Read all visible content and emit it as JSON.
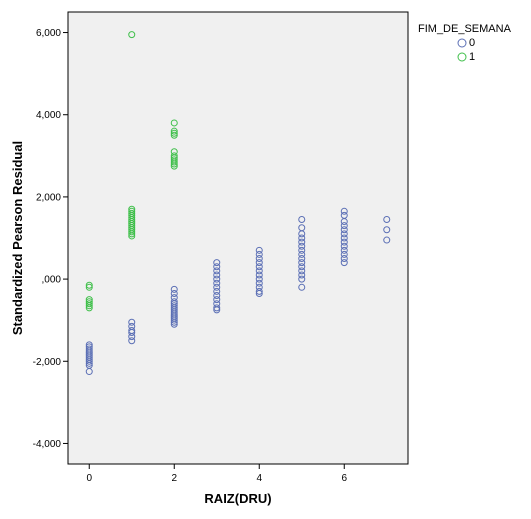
{
  "chart_data": {
    "type": "scatter",
    "xlabel": "RAIZ(DRU)",
    "ylabel": "Standardized Pearson Residual",
    "xlim": [
      -0.5,
      7.5
    ],
    "ylim": [
      -4.5,
      6.5
    ],
    "x_ticks": [
      0,
      2,
      4,
      6
    ],
    "x_tick_labels": [
      "0",
      "2",
      "4",
      "6"
    ],
    "y_ticks": [
      -4,
      -2,
      0,
      2,
      4,
      6
    ],
    "y_tick_labels": [
      "-4,000",
      "-2,000",
      ",000",
      "2,000",
      "4,000",
      "6,000"
    ],
    "grid": false,
    "legend_title": "FIM_DE_SEMANA",
    "legend_position": "top-right, outside plot",
    "background_color": "#f0f0f0",
    "series": [
      {
        "name": "0",
        "color": "#5b6fb5",
        "marker": "open-circle",
        "points": [
          [
            0,
            -1.6
          ],
          [
            0,
            -1.65
          ],
          [
            0,
            -1.7
          ],
          [
            0,
            -1.75
          ],
          [
            0,
            -1.8
          ],
          [
            0,
            -1.85
          ],
          [
            0,
            -1.9
          ],
          [
            0,
            -1.95
          ],
          [
            0,
            -2.0
          ],
          [
            0,
            -2.05
          ],
          [
            0,
            -2.1
          ],
          [
            0,
            -2.25
          ],
          [
            1,
            -1.05
          ],
          [
            1,
            -1.15
          ],
          [
            1,
            -1.25
          ],
          [
            1,
            -1.3
          ],
          [
            1,
            -1.4
          ],
          [
            1,
            -1.5
          ],
          [
            2,
            -0.25
          ],
          [
            2,
            -0.35
          ],
          [
            2,
            -0.45
          ],
          [
            2,
            -0.55
          ],
          [
            2,
            -0.6
          ],
          [
            2,
            -0.65
          ],
          [
            2,
            -0.7
          ],
          [
            2,
            -0.75
          ],
          [
            2,
            -0.8
          ],
          [
            2,
            -0.85
          ],
          [
            2,
            -0.9
          ],
          [
            2,
            -0.95
          ],
          [
            2,
            -1.0
          ],
          [
            2,
            -1.05
          ],
          [
            2,
            -1.1
          ],
          [
            3,
            0.4
          ],
          [
            3,
            0.3
          ],
          [
            3,
            0.2
          ],
          [
            3,
            0.1
          ],
          [
            3,
            0.0
          ],
          [
            3,
            -0.1
          ],
          [
            3,
            -0.2
          ],
          [
            3,
            -0.3
          ],
          [
            3,
            -0.4
          ],
          [
            3,
            -0.5
          ],
          [
            3,
            -0.6
          ],
          [
            3,
            -0.7
          ],
          [
            3,
            -0.75
          ],
          [
            4,
            0.7
          ],
          [
            4,
            0.6
          ],
          [
            4,
            0.5
          ],
          [
            4,
            0.4
          ],
          [
            4,
            0.3
          ],
          [
            4,
            0.2
          ],
          [
            4,
            0.1
          ],
          [
            4,
            0.0
          ],
          [
            4,
            -0.1
          ],
          [
            4,
            -0.2
          ],
          [
            4,
            -0.3
          ],
          [
            4,
            -0.35
          ],
          [
            5,
            1.45
          ],
          [
            5,
            1.25
          ],
          [
            5,
            1.1
          ],
          [
            5,
            1.0
          ],
          [
            5,
            0.9
          ],
          [
            5,
            0.8
          ],
          [
            5,
            0.7
          ],
          [
            5,
            0.6
          ],
          [
            5,
            0.5
          ],
          [
            5,
            0.4
          ],
          [
            5,
            0.3
          ],
          [
            5,
            0.2
          ],
          [
            5,
            0.1
          ],
          [
            5,
            0.0
          ],
          [
            5,
            -0.2
          ],
          [
            6,
            1.65
          ],
          [
            6,
            1.55
          ],
          [
            6,
            1.4
          ],
          [
            6,
            1.3
          ],
          [
            6,
            1.2
          ],
          [
            6,
            1.1
          ],
          [
            6,
            1.0
          ],
          [
            6,
            0.9
          ],
          [
            6,
            0.8
          ],
          [
            6,
            0.7
          ],
          [
            6,
            0.6
          ],
          [
            6,
            0.5
          ],
          [
            6,
            0.4
          ],
          [
            7,
            1.45
          ],
          [
            7,
            1.2
          ],
          [
            7,
            0.95
          ]
        ]
      },
      {
        "name": "1",
        "color": "#3fbf4a",
        "marker": "open-circle",
        "points": [
          [
            0,
            -0.15
          ],
          [
            0,
            -0.2
          ],
          [
            0,
            -0.5
          ],
          [
            0,
            -0.55
          ],
          [
            0,
            -0.6
          ],
          [
            0,
            -0.65
          ],
          [
            0,
            -0.7
          ],
          [
            1,
            5.95
          ],
          [
            1,
            1.7
          ],
          [
            1,
            1.65
          ],
          [
            1,
            1.6
          ],
          [
            1,
            1.55
          ],
          [
            1,
            1.5
          ],
          [
            1,
            1.45
          ],
          [
            1,
            1.4
          ],
          [
            1,
            1.35
          ],
          [
            1,
            1.3
          ],
          [
            1,
            1.25
          ],
          [
            1,
            1.2
          ],
          [
            1,
            1.15
          ],
          [
            1,
            1.1
          ],
          [
            1,
            1.05
          ],
          [
            2,
            3.8
          ],
          [
            2,
            3.6
          ],
          [
            2,
            3.55
          ],
          [
            2,
            3.5
          ],
          [
            2,
            3.1
          ],
          [
            2,
            3.0
          ],
          [
            2,
            2.95
          ],
          [
            2,
            2.9
          ],
          [
            2,
            2.85
          ],
          [
            2,
            2.8
          ],
          [
            2,
            2.75
          ]
        ]
      }
    ]
  }
}
